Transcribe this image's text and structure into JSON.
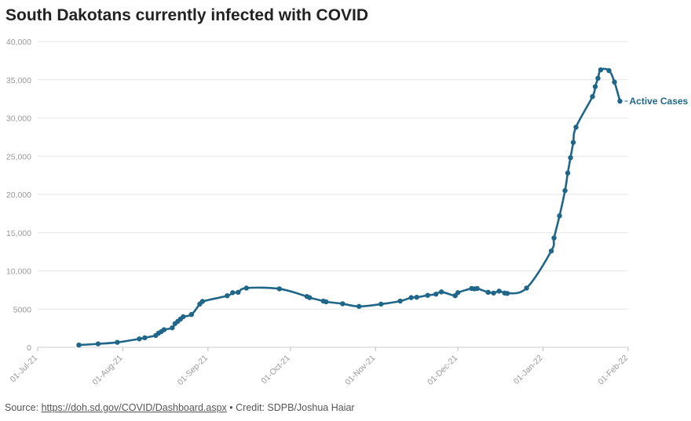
{
  "title": "South Dakotans currently infected with COVID",
  "footer": {
    "source_prefix": "Source: ",
    "source_link": "https://doh.sd.gov/COVID/Dashboard.aspx",
    "credit": " • Credit: SDPB/Joshua Haiar"
  },
  "colors": {
    "series": "#1f6688",
    "grid": "#e6e6e6",
    "axis_text": "#999999"
  },
  "chart_data": {
    "type": "line",
    "title": "South Dakotans currently infected with COVID",
    "xlabel": "",
    "ylabel": "",
    "ylim": [
      0,
      40000
    ],
    "yticks": [
      0,
      5000,
      10000,
      15000,
      20000,
      25000,
      30000,
      35000,
      40000
    ],
    "ytick_labels": [
      "0",
      "5000",
      "10,000",
      "15,000",
      "20,000",
      "25,000",
      "30,000",
      "35,000",
      "40,000"
    ],
    "xlim": [
      "2021-07-01",
      "2022-02-01"
    ],
    "xticks": [
      "2021-07-01",
      "2021-08-01",
      "2021-09-01",
      "2021-10-01",
      "2021-11-01",
      "2021-12-01",
      "2022-01-01",
      "2022-02-01"
    ],
    "xtick_labels": [
      "01-Jul-21",
      "01-Aug-21",
      "01-Sep-21",
      "01-Oct-21",
      "01-Nov-21",
      "01-Dec-21",
      "01-Jan-22",
      "01-Feb-22"
    ],
    "grid": "horizontal",
    "series": [
      {
        "name": "Active Cases",
        "points": [
          [
            "2021-07-16",
            300
          ],
          [
            "2021-07-23",
            450
          ],
          [
            "2021-07-30",
            650
          ],
          [
            "2021-08-07",
            1100
          ],
          [
            "2021-08-09",
            1250
          ],
          [
            "2021-08-13",
            1550
          ],
          [
            "2021-08-14",
            1850
          ],
          [
            "2021-08-15",
            2050
          ],
          [
            "2021-08-16",
            2300
          ],
          [
            "2021-08-19",
            2550
          ],
          [
            "2021-08-20",
            3100
          ],
          [
            "2021-08-21",
            3400
          ],
          [
            "2021-08-22",
            3700
          ],
          [
            "2021-08-23",
            4000
          ],
          [
            "2021-08-26",
            4300
          ],
          [
            "2021-08-29",
            5650
          ],
          [
            "2021-08-30",
            6000
          ],
          [
            "2021-09-08",
            6750
          ],
          [
            "2021-09-10",
            7150
          ],
          [
            "2021-09-12",
            7200
          ],
          [
            "2021-09-15",
            7750
          ],
          [
            "2021-09-27",
            7650
          ],
          [
            "2021-10-07",
            6650
          ],
          [
            "2021-10-08",
            6500
          ],
          [
            "2021-10-13",
            6050
          ],
          [
            "2021-10-14",
            5950
          ],
          [
            "2021-10-20",
            5700
          ],
          [
            "2021-10-26",
            5350
          ],
          [
            "2021-11-03",
            5650
          ],
          [
            "2021-11-10",
            6050
          ],
          [
            "2021-11-14",
            6500
          ],
          [
            "2021-11-16",
            6550
          ],
          [
            "2021-11-20",
            6800
          ],
          [
            "2021-11-23",
            6950
          ],
          [
            "2021-11-25",
            7250
          ],
          [
            "2021-11-30",
            6750
          ],
          [
            "2021-12-01",
            7150
          ],
          [
            "2021-12-06",
            7700
          ],
          [
            "2021-12-07",
            7650
          ],
          [
            "2021-12-08",
            7700
          ],
          [
            "2021-12-12",
            7200
          ],
          [
            "2021-12-14",
            7100
          ],
          [
            "2021-12-16",
            7350
          ],
          [
            "2021-12-18",
            7100
          ],
          [
            "2021-12-19",
            7050
          ],
          [
            "2021-12-26",
            7750
          ],
          [
            "2022-01-04",
            12600
          ],
          [
            "2022-01-05",
            14300
          ],
          [
            "2022-01-07",
            17200
          ],
          [
            "2022-01-09",
            20500
          ],
          [
            "2022-01-10",
            22800
          ],
          [
            "2022-01-11",
            24800
          ],
          [
            "2022-01-12",
            26800
          ],
          [
            "2022-01-13",
            28800
          ],
          [
            "2022-01-19",
            32800
          ],
          [
            "2022-01-20",
            34100
          ],
          [
            "2022-01-21",
            35200
          ],
          [
            "2022-01-22",
            36300
          ],
          [
            "2022-01-25",
            36200
          ],
          [
            "2022-01-27",
            34700
          ],
          [
            "2022-01-29",
            32200
          ]
        ]
      }
    ]
  }
}
